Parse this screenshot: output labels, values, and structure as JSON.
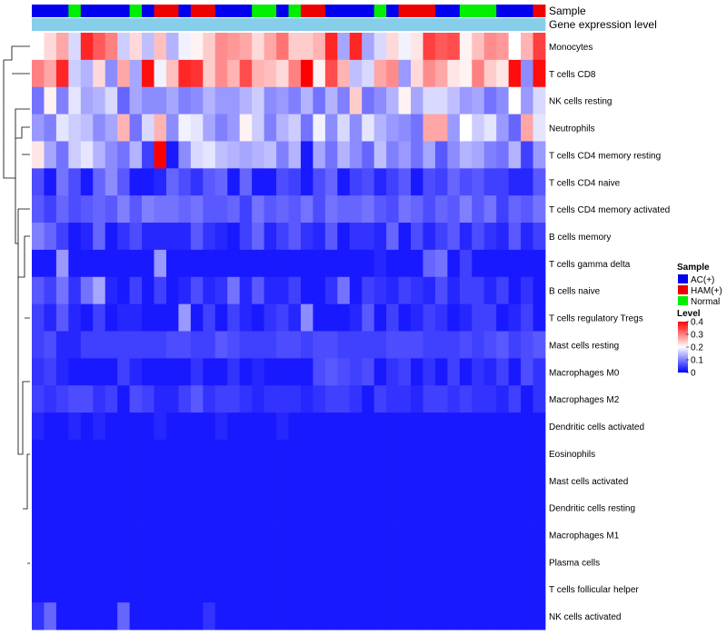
{
  "chart_data": {
    "type": "heatmap",
    "title": "",
    "annotation_labels": {
      "sample": "Sample",
      "expression": "Gene expression level"
    },
    "rows": [
      "Monocytes",
      "T cells CD8",
      "NK cells resting",
      "Neutrophils",
      "T cells CD4 memory resting",
      "T cells CD4 naive",
      "T cells CD4 memory activated",
      "B cells memory",
      "T cells gamma delta",
      "B cells naive",
      "T cells regulatory  Tregs",
      "Mast cells resting",
      "Macrophages M0",
      "Macrophages M2",
      "Dendritic cells activated",
      "Eosinophils",
      "Mast cells activated",
      "Dendritic cells resting",
      "Macrophages M1",
      "Plasma cells",
      "T cells follicular helper",
      "NK cells activated"
    ],
    "samples": [
      "AC",
      "AC",
      "AC",
      "N",
      "AC",
      "AC",
      "AC",
      "AC",
      "N",
      "AC",
      "HAM",
      "HAM",
      "AC",
      "HAM",
      "HAM",
      "AC",
      "AC",
      "AC",
      "N",
      "N",
      "AC",
      "N",
      "HAM",
      "HAM",
      "AC",
      "AC",
      "AC",
      "AC",
      "N",
      "AC",
      "HAM",
      "HAM",
      "HAM",
      "AC",
      "AC",
      "N",
      "N",
      "N",
      "AC",
      "AC",
      "AC",
      "HAM"
    ],
    "values": [
      [
        0.2,
        0.23,
        0.27,
        0.17,
        0.37,
        0.33,
        0.3,
        0.16,
        0.23,
        0.15,
        0.25,
        0.14,
        0.19,
        0.21,
        0.24,
        0.29,
        0.28,
        0.27,
        0.23,
        0.27,
        0.31,
        0.24,
        0.24,
        0.26,
        0.37,
        0.13,
        0.37,
        0.13,
        0.17,
        0.23,
        0.19,
        0.22,
        0.35,
        0.33,
        0.34,
        0.21,
        0.25,
        0.29,
        0.28,
        0.2,
        0.26,
        0.35
      ],
      [
        0.3,
        0.27,
        0.37,
        0.16,
        0.14,
        0.23,
        0.11,
        0.27,
        0.13,
        0.39,
        0.19,
        0.25,
        0.37,
        0.36,
        0.24,
        0.29,
        0.26,
        0.34,
        0.26,
        0.25,
        0.23,
        0.3,
        0.4,
        0.21,
        0.34,
        0.26,
        0.15,
        0.17,
        0.27,
        0.29,
        0.12,
        0.23,
        0.29,
        0.27,
        0.22,
        0.21,
        0.3,
        0.24,
        0.22,
        0.39,
        0.11,
        0.39
      ],
      [
        0.09,
        0.21,
        0.1,
        0.18,
        0.13,
        0.14,
        0.17,
        0.08,
        0.13,
        0.11,
        0.11,
        0.13,
        0.1,
        0.11,
        0.14,
        0.12,
        0.12,
        0.14,
        0.16,
        0.11,
        0.12,
        0.1,
        0.14,
        0.09,
        0.14,
        0.1,
        0.24,
        0.09,
        0.11,
        0.14,
        0.21,
        0.13,
        0.17,
        0.17,
        0.15,
        0.12,
        0.13,
        0.09,
        0.11,
        0.2,
        0.12,
        0.17
      ],
      [
        0.12,
        0.1,
        0.18,
        0.16,
        0.15,
        0.11,
        0.13,
        0.26,
        0.09,
        0.17,
        0.26,
        0.11,
        0.19,
        0.18,
        0.13,
        0.1,
        0.12,
        0.21,
        0.16,
        0.1,
        0.14,
        0.16,
        0.09,
        0.19,
        0.11,
        0.17,
        0.11,
        0.18,
        0.14,
        0.12,
        0.11,
        0.09,
        0.27,
        0.27,
        0.12,
        0.2,
        0.16,
        0.18,
        0.12,
        0.08,
        0.27,
        0.18
      ],
      [
        0.22,
        0.13,
        0.09,
        0.16,
        0.18,
        0.14,
        0.11,
        0.09,
        0.14,
        0.05,
        0.4,
        0.02,
        0.11,
        0.17,
        0.18,
        0.15,
        0.14,
        0.13,
        0.14,
        0.15,
        0.1,
        0.14,
        0.02,
        0.13,
        0.09,
        0.14,
        0.11,
        0.08,
        0.15,
        0.1,
        0.12,
        0.09,
        0.13,
        0.07,
        0.11,
        0.14,
        0.13,
        0.1,
        0.09,
        0.14,
        0.05,
        0.12
      ],
      [
        0.06,
        0.02,
        0.09,
        0.06,
        0.02,
        0.08,
        0.11,
        0.07,
        0.02,
        0.02,
        0.03,
        0.08,
        0.06,
        0.04,
        0.07,
        0.08,
        0.02,
        0.08,
        0.02,
        0.02,
        0.06,
        0.05,
        0.02,
        0.06,
        0.08,
        0.02,
        0.05,
        0.06,
        0.03,
        0.05,
        0.07,
        0.02,
        0.06,
        0.05,
        0.08,
        0.06,
        0.07,
        0.05,
        0.05,
        0.03,
        0.03,
        0.07
      ],
      [
        0.07,
        0.05,
        0.08,
        0.06,
        0.07,
        0.08,
        0.07,
        0.1,
        0.07,
        0.1,
        0.09,
        0.09,
        0.08,
        0.09,
        0.07,
        0.07,
        0.08,
        0.05,
        0.09,
        0.07,
        0.08,
        0.07,
        0.09,
        0.06,
        0.09,
        0.08,
        0.08,
        0.09,
        0.07,
        0.06,
        0.09,
        0.08,
        0.06,
        0.08,
        0.07,
        0.1,
        0.07,
        0.09,
        0.05,
        0.08,
        0.07,
        0.09
      ],
      [
        0.1,
        0.08,
        0.05,
        0.02,
        0.03,
        0.08,
        0.02,
        0.04,
        0.06,
        0.03,
        0.03,
        0.03,
        0.03,
        0.07,
        0.04,
        0.03,
        0.02,
        0.05,
        0.08,
        0.03,
        0.05,
        0.07,
        0.04,
        0.03,
        0.07,
        0.02,
        0.04,
        0.04,
        0.03,
        0.08,
        0.02,
        0.06,
        0.03,
        0.05,
        0.07,
        0.03,
        0.06,
        0.04,
        0.03,
        0.07,
        0.03,
        0.05
      ],
      [
        0.02,
        0.02,
        0.12,
        0.02,
        0.02,
        0.02,
        0.02,
        0.02,
        0.02,
        0.02,
        0.12,
        0.02,
        0.02,
        0.02,
        0.02,
        0.02,
        0.02,
        0.02,
        0.02,
        0.02,
        0.02,
        0.02,
        0.02,
        0.02,
        0.02,
        0.02,
        0.02,
        0.02,
        0.03,
        0.02,
        0.02,
        0.02,
        0.08,
        0.09,
        0.02,
        0.05,
        0.02,
        0.02,
        0.02,
        0.02,
        0.02,
        0.02
      ],
      [
        0.07,
        0.05,
        0.09,
        0.04,
        0.09,
        0.13,
        0.03,
        0.02,
        0.05,
        0.02,
        0.05,
        0.02,
        0.03,
        0.06,
        0.03,
        0.04,
        0.09,
        0.03,
        0.07,
        0.03,
        0.03,
        0.05,
        0.02,
        0.02,
        0.04,
        0.09,
        0.02,
        0.05,
        0.04,
        0.03,
        0.05,
        0.04,
        0.03,
        0.06,
        0.03,
        0.05,
        0.05,
        0.03,
        0.05,
        0.02,
        0.04,
        0.02
      ],
      [
        0.05,
        0.03,
        0.07,
        0.03,
        0.02,
        0.05,
        0.02,
        0.03,
        0.03,
        0.02,
        0.02,
        0.02,
        0.12,
        0.02,
        0.05,
        0.02,
        0.05,
        0.03,
        0.02,
        0.04,
        0.05,
        0.03,
        0.11,
        0.02,
        0.02,
        0.02,
        0.03,
        0.07,
        0.02,
        0.05,
        0.02,
        0.03,
        0.05,
        0.04,
        0.02,
        0.03,
        0.05,
        0.05,
        0.02,
        0.03,
        0.05,
        0.02
      ],
      [
        0.05,
        0.06,
        0.03,
        0.03,
        0.05,
        0.05,
        0.05,
        0.05,
        0.05,
        0.05,
        0.05,
        0.06,
        0.06,
        0.05,
        0.05,
        0.07,
        0.06,
        0.05,
        0.05,
        0.05,
        0.06,
        0.06,
        0.05,
        0.06,
        0.06,
        0.05,
        0.05,
        0.05,
        0.05,
        0.06,
        0.06,
        0.06,
        0.05,
        0.05,
        0.05,
        0.06,
        0.05,
        0.06,
        0.07,
        0.05,
        0.06,
        0.07
      ],
      [
        0.04,
        0.05,
        0.03,
        0.02,
        0.02,
        0.02,
        0.02,
        0.05,
        0.03,
        0.02,
        0.02,
        0.02,
        0.02,
        0.04,
        0.02,
        0.02,
        0.04,
        0.02,
        0.03,
        0.02,
        0.02,
        0.02,
        0.02,
        0.06,
        0.07,
        0.06,
        0.05,
        0.06,
        0.02,
        0.04,
        0.05,
        0.02,
        0.04,
        0.02,
        0.05,
        0.02,
        0.04,
        0.03,
        0.05,
        0.02,
        0.06,
        0.04
      ],
      [
        0.05,
        0.04,
        0.05,
        0.06,
        0.06,
        0.04,
        0.05,
        0.02,
        0.06,
        0.05,
        0.03,
        0.03,
        0.05,
        0.07,
        0.04,
        0.05,
        0.05,
        0.04,
        0.03,
        0.04,
        0.04,
        0.04,
        0.03,
        0.04,
        0.05,
        0.05,
        0.04,
        0.02,
        0.05,
        0.04,
        0.04,
        0.03,
        0.05,
        0.05,
        0.04,
        0.05,
        0.04,
        0.04,
        0.03,
        0.05,
        0.02,
        0.04
      ],
      [
        0.03,
        0.02,
        0.02,
        0.03,
        0.02,
        0.03,
        0.02,
        0.02,
        0.02,
        0.02,
        0.03,
        0.02,
        0.02,
        0.02,
        0.02,
        0.03,
        0.02,
        0.02,
        0.02,
        0.02,
        0.03,
        0.02,
        0.02,
        0.02,
        0.02,
        0.02,
        0.02,
        0.02,
        0.02,
        0.02,
        0.02,
        0.02,
        0.02,
        0.02,
        0.02,
        0.02,
        0.02,
        0.02,
        0.02,
        0.02,
        0.02,
        0.02
      ],
      [
        0.02,
        0.02,
        0.02,
        0.02,
        0.02,
        0.02,
        0.02,
        0.02,
        0.02,
        0.02,
        0.02,
        0.02,
        0.02,
        0.02,
        0.02,
        0.02,
        0.02,
        0.02,
        0.02,
        0.02,
        0.02,
        0.02,
        0.02,
        0.02,
        0.02,
        0.02,
        0.02,
        0.02,
        0.02,
        0.02,
        0.02,
        0.02,
        0.02,
        0.02,
        0.02,
        0.02,
        0.02,
        0.02,
        0.02,
        0.02,
        0.02,
        0.02
      ],
      [
        0.02,
        0.02,
        0.02,
        0.02,
        0.02,
        0.02,
        0.02,
        0.02,
        0.02,
        0.02,
        0.02,
        0.02,
        0.02,
        0.02,
        0.02,
        0.02,
        0.02,
        0.02,
        0.02,
        0.02,
        0.02,
        0.02,
        0.02,
        0.02,
        0.02,
        0.02,
        0.02,
        0.02,
        0.02,
        0.02,
        0.02,
        0.02,
        0.02,
        0.02,
        0.02,
        0.02,
        0.02,
        0.02,
        0.02,
        0.02,
        0.02,
        0.02
      ],
      [
        0.02,
        0.02,
        0.02,
        0.02,
        0.02,
        0.02,
        0.02,
        0.02,
        0.02,
        0.02,
        0.02,
        0.02,
        0.02,
        0.02,
        0.02,
        0.02,
        0.02,
        0.02,
        0.02,
        0.02,
        0.02,
        0.02,
        0.02,
        0.02,
        0.02,
        0.02,
        0.02,
        0.02,
        0.02,
        0.02,
        0.02,
        0.02,
        0.02,
        0.02,
        0.02,
        0.02,
        0.02,
        0.02,
        0.02,
        0.02,
        0.02,
        0.02
      ],
      [
        0.02,
        0.02,
        0.02,
        0.02,
        0.02,
        0.02,
        0.02,
        0.02,
        0.02,
        0.02,
        0.02,
        0.02,
        0.02,
        0.02,
        0.02,
        0.02,
        0.02,
        0.02,
        0.02,
        0.02,
        0.02,
        0.02,
        0.02,
        0.02,
        0.02,
        0.02,
        0.02,
        0.02,
        0.02,
        0.02,
        0.02,
        0.02,
        0.02,
        0.02,
        0.02,
        0.02,
        0.02,
        0.02,
        0.02,
        0.02,
        0.02,
        0.02
      ],
      [
        0.02,
        0.02,
        0.02,
        0.02,
        0.02,
        0.02,
        0.02,
        0.02,
        0.02,
        0.02,
        0.02,
        0.02,
        0.02,
        0.02,
        0.02,
        0.02,
        0.02,
        0.02,
        0.02,
        0.02,
        0.02,
        0.02,
        0.02,
        0.02,
        0.02,
        0.02,
        0.02,
        0.02,
        0.02,
        0.02,
        0.02,
        0.02,
        0.02,
        0.02,
        0.02,
        0.02,
        0.02,
        0.02,
        0.02,
        0.02,
        0.02,
        0.02
      ],
      [
        0.02,
        0.02,
        0.02,
        0.02,
        0.02,
        0.02,
        0.02,
        0.02,
        0.02,
        0.02,
        0.02,
        0.02,
        0.02,
        0.02,
        0.02,
        0.02,
        0.02,
        0.02,
        0.02,
        0.02,
        0.02,
        0.02,
        0.02,
        0.02,
        0.02,
        0.02,
        0.02,
        0.02,
        0.02,
        0.02,
        0.02,
        0.02,
        0.02,
        0.02,
        0.02,
        0.02,
        0.02,
        0.02,
        0.02,
        0.02,
        0.02,
        0.02
      ],
      [
        0.04,
        0.08,
        0.02,
        0.02,
        0.02,
        0.02,
        0.02,
        0.08,
        0.02,
        0.02,
        0.02,
        0.02,
        0.02,
        0.02,
        0.04,
        0.02,
        0.02,
        0.02,
        0.02,
        0.02,
        0.02,
        0.02,
        0.02,
        0.02,
        0.02,
        0.02,
        0.02,
        0.02,
        0.02,
        0.02,
        0.02,
        0.02,
        0.02,
        0.02,
        0.02,
        0.02,
        0.02,
        0.02,
        0.02,
        0.02,
        0.02,
        0.02
      ]
    ],
    "legend": {
      "sample_title": "Sample",
      "sample_entries": [
        {
          "key": "AC",
          "label": "AC(+)",
          "color": "#0000ee"
        },
        {
          "key": "HAM",
          "label": "HAM(+)",
          "color": "#ee0000"
        },
        {
          "key": "N",
          "label": "Normal",
          "color": "#00ee00"
        }
      ],
      "level_title": "Level",
      "level_ticks": [
        {
          "value": 0.4,
          "label": "0.4"
        },
        {
          "value": 0.3,
          "label": "0.3"
        },
        {
          "value": 0.2,
          "label": "0.2"
        },
        {
          "value": 0.1,
          "label": "0.1"
        },
        {
          "value": 0.0,
          "label": "0"
        }
      ]
    },
    "color_scale": {
      "min": 0,
      "mid": 0.2,
      "max": 0.4,
      "low": "#0000ff",
      "midc": "#ffffff",
      "high": "#ff0000"
    },
    "expression_bar_color": "#87ceeb",
    "ylim": [
      0,
      0.4
    ]
  }
}
